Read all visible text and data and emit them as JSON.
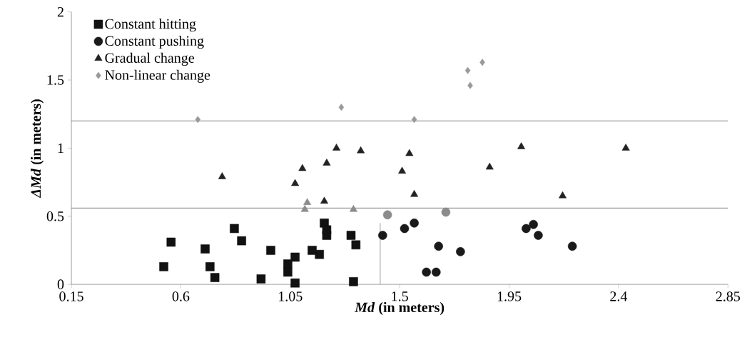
{
  "chart_data": {
    "type": "scatter",
    "xlabel": "*Md* (in meters)",
    "ylabel": "*ΔMd* (in meters)",
    "xlim": [
      0.15,
      2.85
    ],
    "ylim": [
      0,
      2
    ],
    "xticks": [
      0.15,
      0.6,
      1.05,
      1.5,
      1.95,
      2.4,
      2.85
    ],
    "yticks": [
      0,
      0.5,
      1,
      1.5,
      2
    ],
    "legend": "top left",
    "grid": false,
    "ref_lines": [
      {
        "axis": "y",
        "value": 1.2,
        "color": "#666666"
      },
      {
        "axis": "y",
        "value": 0.56,
        "color": "#666666"
      }
    ],
    "series": [
      {
        "name": "Constant hitting",
        "color": "#111111",
        "marker": "square",
        "x": [
          0.53,
          0.56,
          0.7,
          0.72,
          0.74,
          0.82,
          0.85,
          0.93,
          0.97,
          1.07,
          1.04,
          1.04,
          1.07,
          1.14,
          1.17,
          1.19,
          1.2,
          1.2,
          1.3,
          1.32,
          1.31
        ],
        "values": [
          0.13,
          0.31,
          0.26,
          0.13,
          0.05,
          0.41,
          0.32,
          0.04,
          0.25,
          0.2,
          0.15,
          0.09,
          0.01,
          0.25,
          0.22,
          0.45,
          0.36,
          0.4,
          0.36,
          0.29,
          0.02
        ]
      },
      {
        "name": "Constant pushing",
        "color": "#1a1a1a",
        "marker": "circle",
        "x": [
          1.43,
          1.52,
          1.56,
          1.61,
          1.65,
          1.66,
          1.75,
          2.02,
          2.05,
          2.07,
          2.21
        ],
        "values": [
          0.36,
          0.41,
          0.45,
          0.09,
          0.09,
          0.28,
          0.24,
          0.41,
          0.44,
          0.36,
          0.28
        ]
      },
      {
        "name": "Gradual change",
        "color": "#222222",
        "marker": "triangle",
        "x": [
          0.77,
          1.07,
          1.1,
          1.2,
          1.24,
          1.34,
          1.54,
          1.51,
          1.56,
          1.19,
          2.0,
          2.43,
          1.87,
          2.17
        ],
        "values": [
          0.79,
          0.74,
          0.85,
          0.89,
          1.0,
          0.98,
          0.96,
          0.83,
          0.66,
          0.61,
          1.01,
          1.0,
          0.86,
          0.65
        ]
      },
      {
        "name": "Non-linear change",
        "color": "#999999",
        "marker": "diamond",
        "x": [
          0.67,
          1.26,
          1.56,
          1.78,
          1.79,
          1.84
        ],
        "values": [
          1.21,
          1.3,
          1.21,
          1.57,
          1.46,
          1.63
        ]
      },
      {
        "color": "#8c8c8c",
        "marker": "triangle",
        "x": [
          1.12,
          1.11,
          1.31
        ],
        "values": [
          0.6,
          0.55,
          0.55
        ]
      },
      {
        "color": "#8c8c8c",
        "marker": "circle",
        "x": [
          1.45,
          1.69
        ],
        "values": [
          0.51,
          0.53
        ]
      },
      {
        "type": "line",
        "color": "#888888",
        "marker": "none",
        "x": [
          1.42,
          1.42
        ],
        "values": [
          0,
          0.45
        ]
      }
    ]
  }
}
